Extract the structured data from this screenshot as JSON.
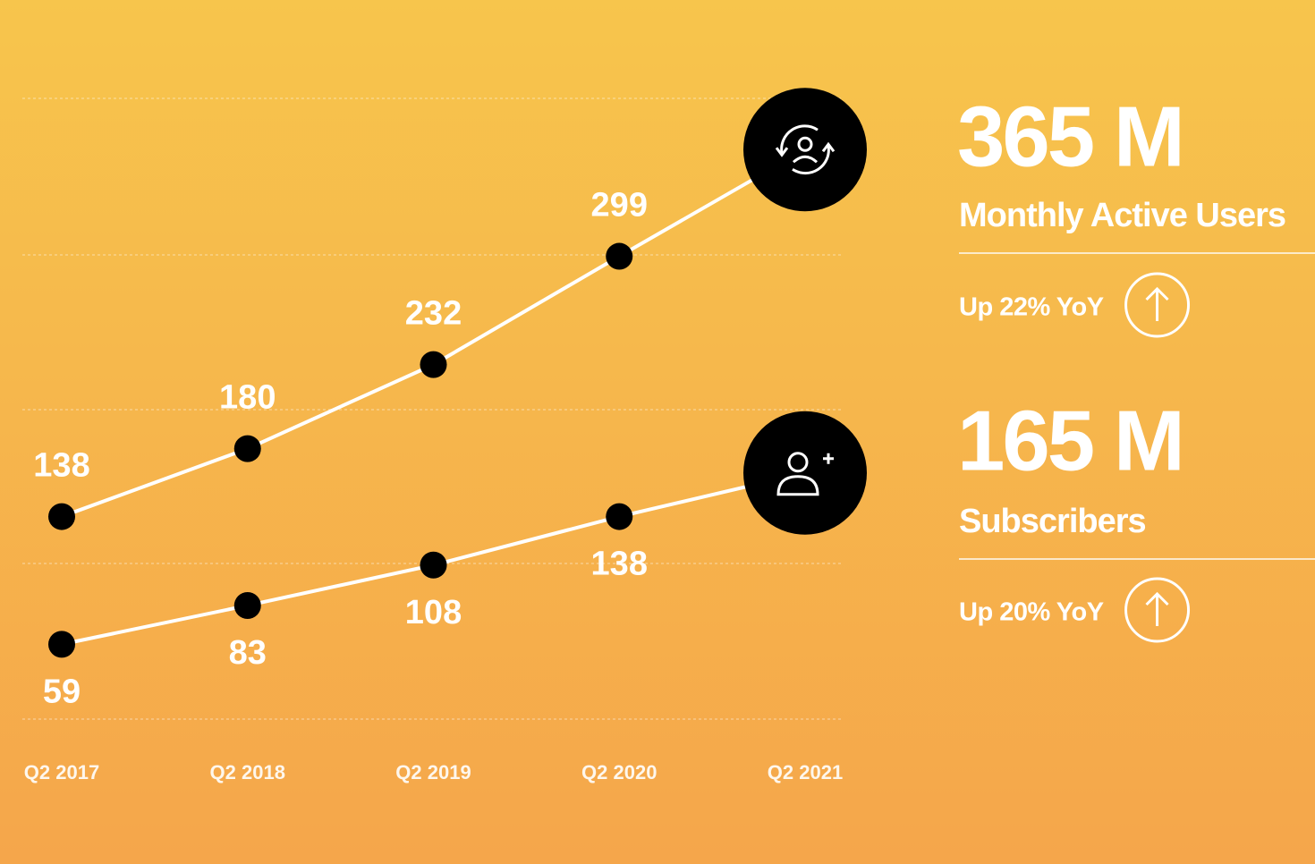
{
  "chart_data": {
    "type": "line",
    "categories": [
      "Q2  2017",
      "Q2  2018",
      "Q2  2019",
      "Q2 2020",
      "Q2 2021"
    ],
    "ylim": [
      0,
      400
    ],
    "series": [
      {
        "name": "Monthly Active Users",
        "color": "#ffffff",
        "values": [
          138,
          180,
          232,
          299,
          365
        ],
        "value_labels": [
          "138",
          "180",
          "232",
          "299",
          "365 M"
        ],
        "change": "Up 22% YoY"
      },
      {
        "name": "Subscribers",
        "color": "#ffffff",
        "values": [
          59,
          83,
          108,
          138,
          165
        ],
        "value_labels": [
          "59",
          "83",
          "108",
          "138",
          "165 M"
        ],
        "change": "Up 20% YoY"
      }
    ]
  }
}
